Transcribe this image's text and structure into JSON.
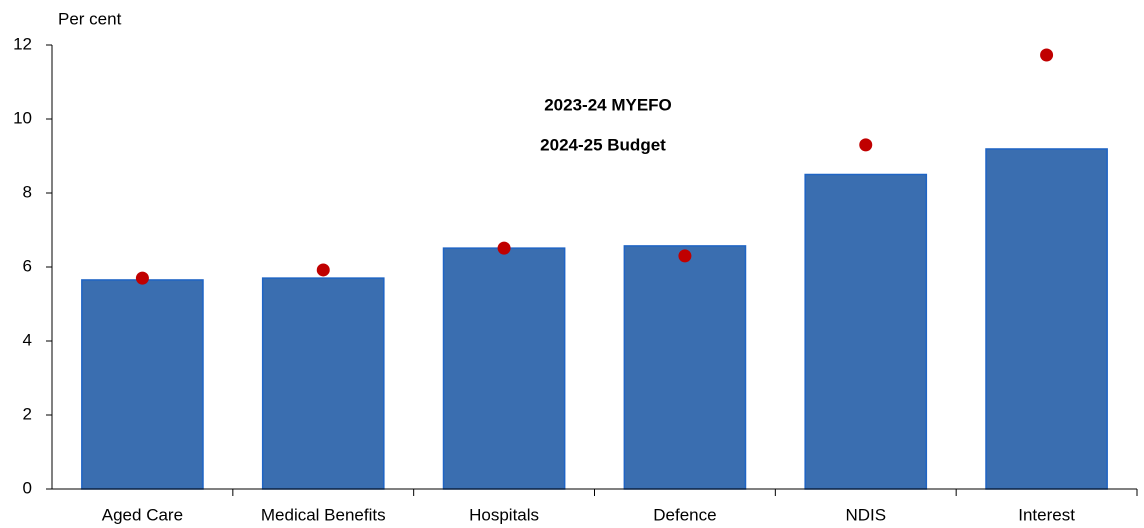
{
  "chart_data": {
    "type": "bar",
    "y_label": "Per cent",
    "categories": [
      "Aged Care",
      "Medical Benefits",
      "Hospitals",
      "Defence",
      "NDIS",
      "Interest"
    ],
    "series": [
      {
        "name": "2023-24 MYEFO",
        "type": "scatter",
        "color": "#c00000",
        "values": [
          5.7,
          5.92,
          6.51,
          6.3,
          9.3,
          11.73
        ]
      },
      {
        "name": "2024-25 Budget",
        "type": "bar",
        "color": "#3a6eb0",
        "values": [
          5.65,
          5.7,
          6.51,
          6.57,
          8.5,
          9.19
        ]
      }
    ],
    "ylim": [
      0,
      12
    ],
    "yticks": [
      0,
      2,
      4,
      6,
      8,
      10,
      12
    ],
    "grid": false
  }
}
